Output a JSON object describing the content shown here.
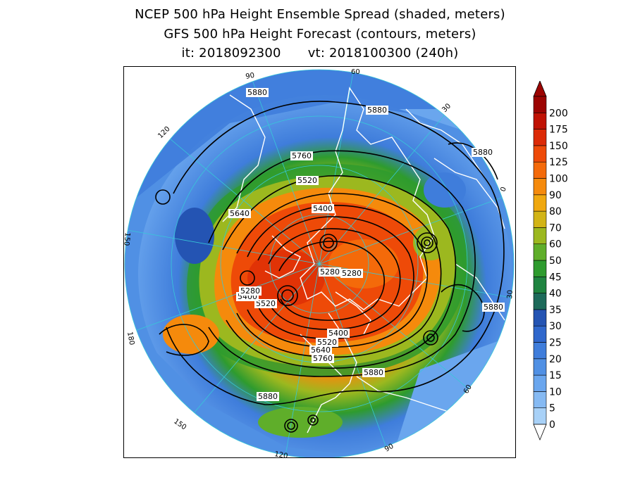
{
  "title": {
    "line1": "NCEP 500 hPa Height Ensemble Spread (shaded, meters)",
    "line2": "GFS 500 hPa Height Forecast (contours, meters)",
    "init_label": "it: 2018092300",
    "valid_label": "vt: 2018100300 (240h)"
  },
  "colorbar": {
    "levels": [
      "0",
      "5",
      "10",
      "15",
      "20",
      "25",
      "30",
      "35",
      "40",
      "45",
      "50",
      "60",
      "70",
      "80",
      "90",
      "100",
      "125",
      "150",
      "175",
      "200"
    ],
    "colors": [
      "#a8d1f7",
      "#86baf3",
      "#6aa6ee",
      "#5090e4",
      "#3f7ddb",
      "#2f67cc",
      "#2454b3",
      "#1d6a5a",
      "#1f8440",
      "#2e9b2e",
      "#5fae2a",
      "#9cb81f",
      "#d2b416",
      "#f0a80f",
      "#f58a0c",
      "#f46a0a",
      "#ee4a08",
      "#dc2a06",
      "#c01204",
      "#9c0402"
    ]
  },
  "map": {
    "contour_labels": [
      "5880",
      "5880",
      "5880",
      "5880",
      "5880",
      "5880",
      "5760",
      "5760",
      "5640",
      "5640",
      "5520",
      "5520",
      "5520",
      "5400",
      "5400",
      "5400",
      "5280",
      "5280",
      "5280"
    ],
    "longitude_labels": [
      "60",
      "30",
      "0",
      "30",
      "60",
      "90",
      "120",
      "150",
      "180",
      "150",
      "120",
      "90"
    ],
    "colors": {
      "frame": "#000000",
      "ocean_fringe": "#9ccbf5",
      "contour": "#000000",
      "coastline": "#ffffff",
      "graticule": "#37c8d8"
    }
  }
}
